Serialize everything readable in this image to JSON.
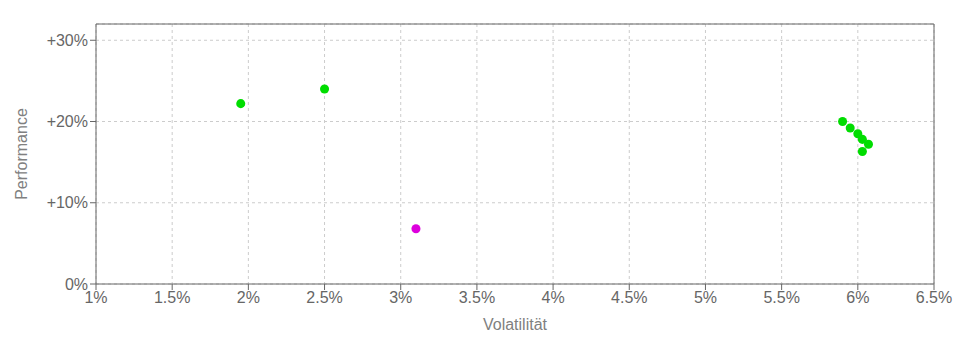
{
  "chart_data": {
    "type": "scatter",
    "xlabel": "Volatilität",
    "ylabel": "Performance",
    "xlim": [
      0.01,
      0.065
    ],
    "ylim": [
      0.0,
      0.32
    ],
    "xticks": [
      {
        "value": 0.01,
        "label": "1%"
      },
      {
        "value": 0.015,
        "label": "1.5%"
      },
      {
        "value": 0.02,
        "label": "2%"
      },
      {
        "value": 0.025,
        "label": "2.5%"
      },
      {
        "value": 0.03,
        "label": "3%"
      },
      {
        "value": 0.035,
        "label": "3.5%"
      },
      {
        "value": 0.04,
        "label": "4%"
      },
      {
        "value": 0.045,
        "label": "4.5%"
      },
      {
        "value": 0.05,
        "label": "5%"
      },
      {
        "value": 0.055,
        "label": "5.5%"
      },
      {
        "value": 0.06,
        "label": "6%"
      },
      {
        "value": 0.065,
        "label": "6.5%"
      }
    ],
    "yticks": [
      {
        "value": 0.0,
        "label": "0%"
      },
      {
        "value": 0.1,
        "label": "+10%"
      },
      {
        "value": 0.2,
        "label": "+20%"
      },
      {
        "value": 0.3,
        "label": "+30%"
      }
    ],
    "grid": true,
    "series": [
      {
        "color": "#00dd00",
        "x": [
          0.0195,
          0.025,
          0.059,
          0.0595,
          0.06,
          0.0603,
          0.0607,
          0.0603
        ],
        "values": [
          0.222,
          0.24,
          0.2,
          0.192,
          0.185,
          0.178,
          0.172,
          0.163
        ]
      },
      {
        "color": "#dd00dd",
        "x": [
          0.031
        ],
        "values": [
          0.068
        ]
      }
    ]
  }
}
